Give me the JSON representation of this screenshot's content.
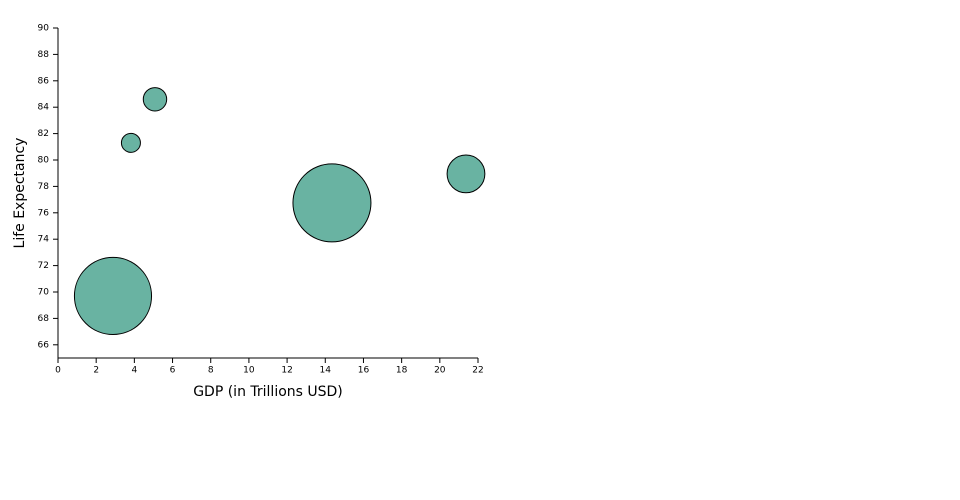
{
  "chart_data": {
    "type": "scatter",
    "x_label": "GDP (in Trillions USD)",
    "y_label": "Life Expectancy",
    "x": [
      2.88,
      14.35,
      21.37,
      3.82,
      5.08
    ],
    "values": [
      69.7,
      76.75,
      78.95,
      81.3,
      84.6
    ],
    "sizes": [
      1366,
      1398,
      328,
      83,
      126
    ],
    "color": "#69b3a2",
    "xlim": [
      0,
      22
    ],
    "xticks": [
      0,
      2,
      4,
      6,
      8,
      10,
      12,
      14,
      16,
      18,
      20,
      22
    ],
    "ylim": [
      65,
      90
    ],
    "yticks": [
      66,
      68,
      70,
      72,
      74,
      76,
      78,
      80,
      82,
      84,
      86,
      88,
      90
    ]
  }
}
